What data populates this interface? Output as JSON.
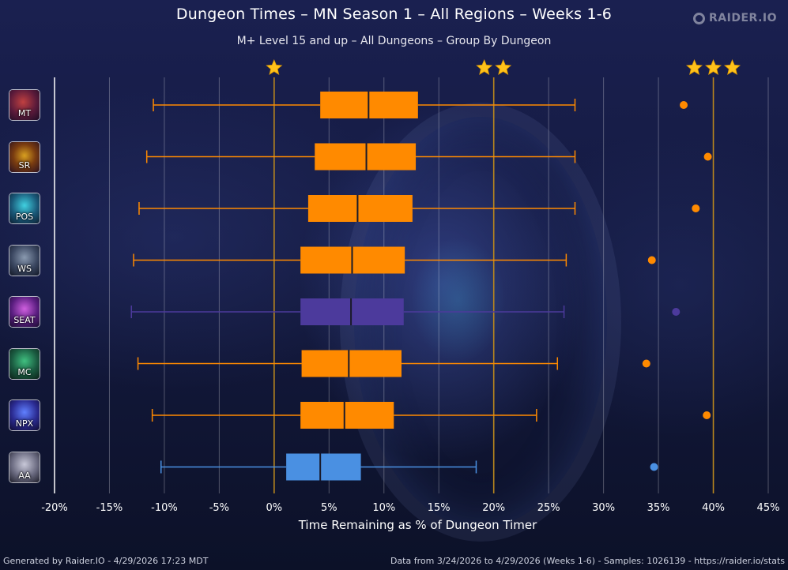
{
  "title": "Dungeon Times – MN Season 1 – All Regions – Weeks 1-6",
  "subtitle": "M+ Level 15 and up – All Dungeons – Group By Dungeon",
  "logo_text": "RAIDER.IO",
  "footer_left": "Generated by Raider.IO - 4/29/2026 17:23 MDT",
  "footer_right": "Data from 3/24/2026 to 4/29/2026 (Weeks 1-6) - Samples: 1026139 - https://raider.io/stats",
  "colors": {
    "orange": "#ff8a00",
    "purple": "#4c3a9c",
    "blue": "#4a90e2",
    "grid": "rgba(255,255,255,0.28)",
    "star_line": "#b8861e",
    "star": "#ffc21a"
  },
  "chart_data": {
    "type": "box",
    "orientation": "horizontal",
    "xlabel": "Time Remaining as % of Dungeon Timer",
    "xlim": [
      -20,
      45
    ],
    "x_ticks": [
      -20,
      -15,
      -10,
      -5,
      0,
      5,
      10,
      15,
      20,
      25,
      30,
      35,
      40,
      45
    ],
    "x_tick_labels": [
      "-20%",
      "-15%",
      "-10%",
      "-5%",
      "0%",
      "5%",
      "10%",
      "15%",
      "20%",
      "25%",
      "30%",
      "35%",
      "40%",
      "45%"
    ],
    "star_thresholds": [
      {
        "x": 0,
        "stars": 1
      },
      {
        "x": 20,
        "stars": 2
      },
      {
        "x": 40,
        "stars": 3
      }
    ],
    "grid": true,
    "series": [
      {
        "name": "MT",
        "whisker_low": -11.0,
        "q1": 4.2,
        "median": 8.6,
        "q3": 13.1,
        "whisker_high": 27.4,
        "outlier": 37.3,
        "color": "orange"
      },
      {
        "name": "SR",
        "whisker_low": -11.6,
        "q1": 3.7,
        "median": 8.4,
        "q3": 12.9,
        "whisker_high": 27.4,
        "outlier": 39.5,
        "color": "orange"
      },
      {
        "name": "POS",
        "whisker_low": -12.3,
        "q1": 3.1,
        "median": 7.6,
        "q3": 12.6,
        "whisker_high": 27.4,
        "outlier": 38.4,
        "color": "orange"
      },
      {
        "name": "WS",
        "whisker_low": -12.8,
        "q1": 2.4,
        "median": 7.1,
        "q3": 11.9,
        "whisker_high": 26.6,
        "outlier": 34.4,
        "color": "orange"
      },
      {
        "name": "SEAT",
        "whisker_low": -13.0,
        "q1": 2.4,
        "median": 7.0,
        "q3": 11.8,
        "whisker_high": 26.4,
        "outlier": 36.6,
        "color": "purple"
      },
      {
        "name": "MC",
        "whisker_low": -12.4,
        "q1": 2.5,
        "median": 6.8,
        "q3": 11.6,
        "whisker_high": 25.8,
        "outlier": 33.9,
        "color": "orange"
      },
      {
        "name": "NPX",
        "whisker_low": -11.1,
        "q1": 2.4,
        "median": 6.4,
        "q3": 10.9,
        "whisker_high": 23.9,
        "outlier": 39.4,
        "color": "orange"
      },
      {
        "name": "AA",
        "whisker_low": -10.3,
        "q1": 1.1,
        "median": 4.2,
        "q3": 7.9,
        "whisker_high": 18.4,
        "outlier": 34.6,
        "color": "blue"
      }
    ]
  }
}
